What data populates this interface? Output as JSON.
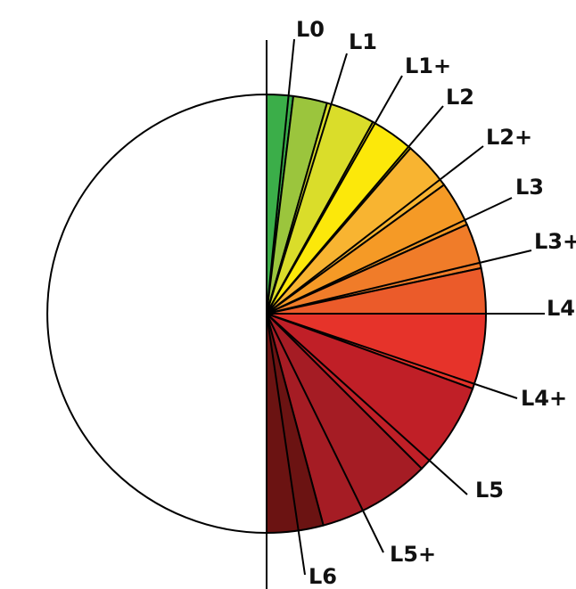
{
  "diagram": {
    "type": "half-pie-level-chart",
    "outline_color": "#000000",
    "background_color": "#ffffff",
    "half_circle_fill": "#ffffff",
    "levels": [
      {
        "name": "L0",
        "color": "#3bae49"
      },
      {
        "name": "L1",
        "color": "#9bc53d"
      },
      {
        "name": "L1+",
        "color": "#dadd2a"
      },
      {
        "name": "L2",
        "color": "#fce80a"
      },
      {
        "name": "L2+",
        "color": "#f8b431"
      },
      {
        "name": "L3",
        "color": "#f59a26"
      },
      {
        "name": "L3+",
        "color": "#f07c29"
      },
      {
        "name": "L4",
        "color": "#eb5b2a"
      },
      {
        "name": "L4+",
        "color": "#e6332a"
      },
      {
        "name": "L5",
        "color": "#c01f27"
      },
      {
        "name": "L5+",
        "color": "#a51c24"
      },
      {
        "name": "L6",
        "color": "#6b1312"
      }
    ]
  }
}
